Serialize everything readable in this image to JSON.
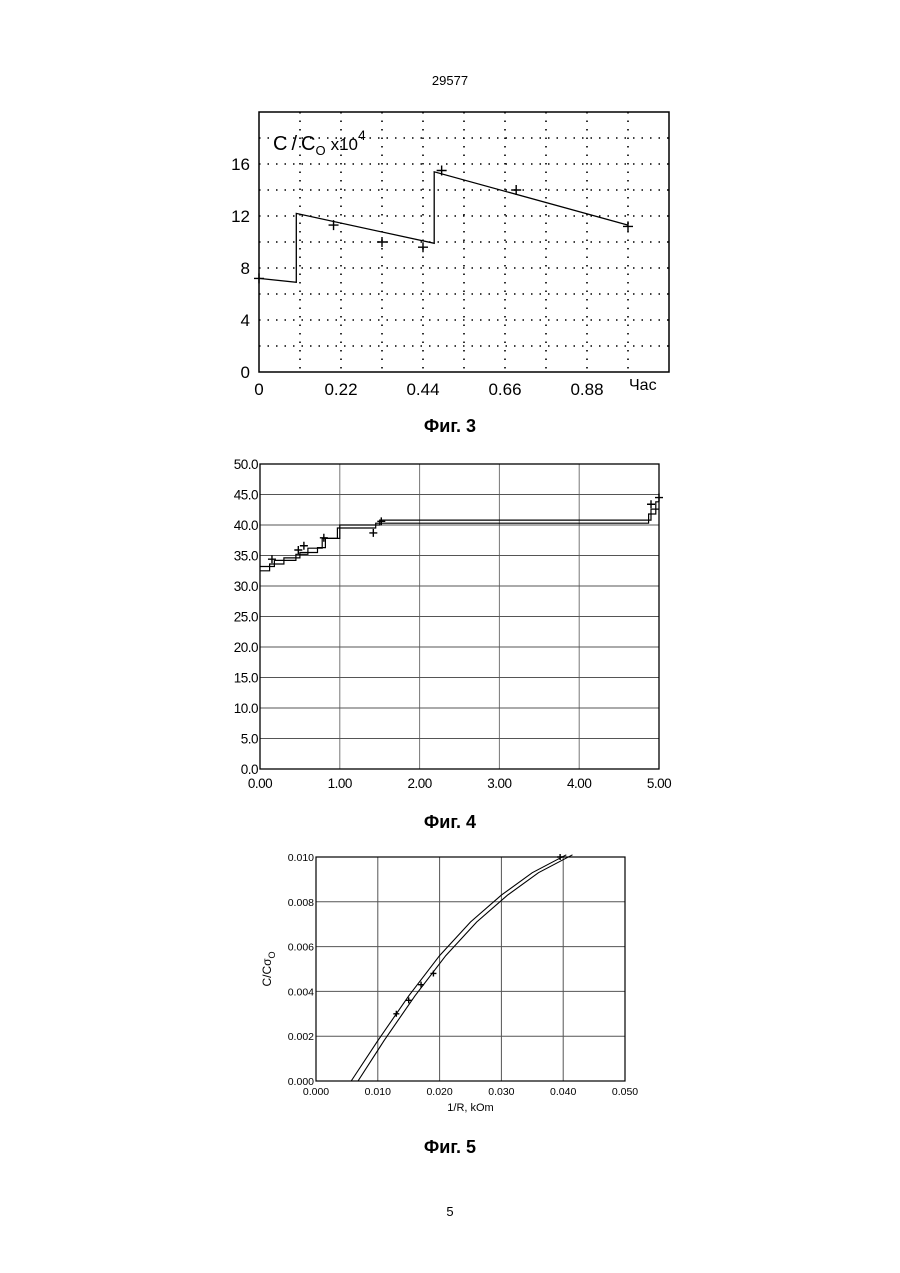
{
  "header": {
    "patent_number": "29577"
  },
  "footer": {
    "page_number": "5"
  },
  "chart_data": [
    {
      "id": "fig3",
      "type": "line",
      "caption": "Фиг. 3",
      "ylabel_parts": {
        "c": "C",
        "sep": "/",
        "c0": "C",
        "sub": "O",
        "mult": "x",
        "base": "10",
        "exp": "4"
      },
      "xlabel": "Час",
      "xlim": [
        0,
        1.1
      ],
      "ylim": [
        0,
        20
      ],
      "x_tick_labels": [
        "0",
        "0.22",
        "0.44",
        "0.66",
        "0.88"
      ],
      "x_tick_values": [
        0,
        0.22,
        0.44,
        0.66,
        0.88
      ],
      "y_tick_labels": [
        "0",
        "4",
        "8",
        "12",
        "16"
      ],
      "y_tick_values": [
        0,
        4,
        8,
        12,
        16
      ],
      "grid": "dotted",
      "series": [
        {
          "kind": "line",
          "points": [
            [
              0,
              7.2
            ],
            [
              0.1,
              6.9
            ],
            [
              0.1,
              12.2
            ],
            [
              0.47,
              9.9
            ],
            [
              0.47,
              15.4
            ],
            [
              0.99,
              11.3
            ]
          ]
        },
        {
          "kind": "markers",
          "points": [
            [
              0,
              7.2
            ],
            [
              0.2,
              11.3
            ],
            [
              0.33,
              10.0
            ],
            [
              0.44,
              9.6
            ],
            [
              0.49,
              15.5
            ],
            [
              0.69,
              14.0
            ],
            [
              0.99,
              11.2
            ]
          ]
        }
      ]
    },
    {
      "id": "fig4",
      "type": "line",
      "caption": "Фиг. 4",
      "xlim": [
        0,
        5
      ],
      "ylim": [
        0,
        50
      ],
      "x_tick_labels": [
        "0.00",
        "1.00",
        "2.00",
        "3.00",
        "4.00",
        "5.00"
      ],
      "x_tick_values": [
        0,
        1,
        2,
        3,
        4,
        5
      ],
      "y_tick_labels": [
        "0.0",
        "5.0",
        "10.0",
        "15.0",
        "20.0",
        "25.0",
        "30.0",
        "35.0",
        "40.0",
        "45.0",
        "50.0"
      ],
      "y_tick_values": [
        0,
        5,
        10,
        15,
        20,
        25,
        30,
        35,
        40,
        45,
        50
      ],
      "grid": "solid",
      "series": [
        {
          "kind": "line",
          "points": [
            [
              0,
              32.5
            ],
            [
              0.12,
              32.5
            ],
            [
              0.12,
              33.6
            ],
            [
              0.3,
              33.6
            ],
            [
              0.3,
              34.6
            ],
            [
              0.5,
              34.6
            ],
            [
              0.5,
              35.5
            ],
            [
              0.72,
              35.5
            ],
            [
              0.72,
              36.3
            ],
            [
              0.82,
              36.3
            ],
            [
              0.82,
              37.8
            ],
            [
              0.97,
              37.8
            ],
            [
              0.97,
              39.5
            ],
            [
              1.45,
              39.5
            ],
            [
              1.45,
              40.3
            ],
            [
              4.87,
              40.3
            ],
            [
              4.87,
              41.8
            ],
            [
              4.96,
              41.8
            ],
            [
              4.96,
              43.8
            ],
            [
              5.0,
              43.8
            ]
          ]
        },
        {
          "kind": "line",
          "points": [
            [
              0,
              33.2
            ],
            [
              0.18,
              33.2
            ],
            [
              0.18,
              34.2
            ],
            [
              0.45,
              34.2
            ],
            [
              0.45,
              35.2
            ],
            [
              0.6,
              35.2
            ],
            [
              0.6,
              36.2
            ],
            [
              0.78,
              36.2
            ],
            [
              0.78,
              37.8
            ],
            [
              1.0,
              37.8
            ],
            [
              1.0,
              40.0
            ],
            [
              1.5,
              40.0
            ],
            [
              1.5,
              40.8
            ],
            [
              4.9,
              40.8
            ],
            [
              4.9,
              42.6
            ],
            [
              5.0,
              42.6
            ]
          ]
        },
        {
          "kind": "markers",
          "points": [
            [
              0.15,
              34.4
            ],
            [
              0.48,
              35.9
            ],
            [
              0.55,
              36.6
            ],
            [
              0.8,
              37.9
            ],
            [
              1.42,
              38.7
            ],
            [
              1.52,
              40.6
            ],
            [
              4.9,
              43.4
            ],
            [
              5.0,
              44.5
            ]
          ]
        }
      ]
    },
    {
      "id": "fig5",
      "type": "line",
      "caption": "Фиг. 5",
      "xlabel": "1/R, kOm",
      "ylabel": "C/Cσ",
      "ylabel_sub": "O",
      "xlim": [
        0,
        0.05
      ],
      "ylim": [
        0,
        0.01
      ],
      "x_tick_labels": [
        "0.000",
        "0.010",
        "0.020",
        "0.030",
        "0.040",
        "0.050"
      ],
      "x_tick_values": [
        0,
        0.01,
        0.02,
        0.03,
        0.04,
        0.05
      ],
      "y_tick_labels": [
        "0.000",
        "0.002",
        "0.004",
        "0.006",
        "0.008",
        "0.010"
      ],
      "y_tick_values": [
        0,
        0.002,
        0.004,
        0.006,
        0.008,
        0.01
      ],
      "grid": "solid",
      "series": [
        {
          "kind": "line",
          "points": [
            [
              0.0057,
              0
            ],
            [
              0.01,
              0.0018
            ],
            [
              0.015,
              0.0038
            ],
            [
              0.02,
              0.0056
            ],
            [
              0.025,
              0.0071
            ],
            [
              0.03,
              0.0083
            ],
            [
              0.035,
              0.0093
            ],
            [
              0.0405,
              0.0101
            ]
          ]
        },
        {
          "kind": "line",
          "points": [
            [
              0.0068,
              0
            ],
            [
              0.011,
              0.0018
            ],
            [
              0.016,
              0.0038
            ],
            [
              0.021,
              0.0056
            ],
            [
              0.026,
              0.0071
            ],
            [
              0.031,
              0.0083
            ],
            [
              0.036,
              0.0093
            ],
            [
              0.0415,
              0.0101
            ]
          ]
        },
        {
          "kind": "markers",
          "points": [
            [
              0.013,
              0.003
            ],
            [
              0.015,
              0.0036
            ],
            [
              0.017,
              0.0043
            ],
            [
              0.019,
              0.0048
            ],
            [
              0.0395,
              0.01
            ]
          ]
        }
      ]
    }
  ]
}
